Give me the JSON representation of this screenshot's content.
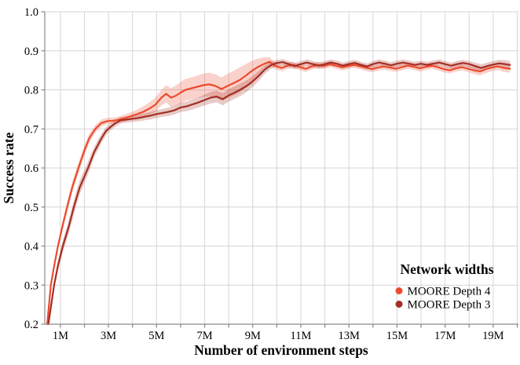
{
  "chart_data": {
    "type": "line",
    "title": "",
    "xlabel": "Number of environment steps",
    "ylabel": "Success rate",
    "xlim": [
      0.35,
      20.05
    ],
    "ylim": [
      0.2,
      1.0
    ],
    "x_unit": "millions",
    "grid": true,
    "x_grid_step": 1,
    "x_labeled_ticks": [
      {
        "value": 1,
        "label": "1M"
      },
      {
        "value": 3,
        "label": "3M"
      },
      {
        "value": 5,
        "label": "5M"
      },
      {
        "value": 7,
        "label": "7M"
      },
      {
        "value": 9,
        "label": "9M"
      },
      {
        "value": 11,
        "label": "11M"
      },
      {
        "value": 13,
        "label": "13M"
      },
      {
        "value": 15,
        "label": "15M"
      },
      {
        "value": 17,
        "label": "17M"
      },
      {
        "value": 19,
        "label": "19M"
      }
    ],
    "y_ticks": [
      {
        "value": 0.2,
        "label": "0.2"
      },
      {
        "value": 0.3,
        "label": "0.3"
      },
      {
        "value": 0.4,
        "label": "0.4"
      },
      {
        "value": 0.5,
        "label": "0.5"
      },
      {
        "value": 0.6,
        "label": "0.6"
      },
      {
        "value": 0.7,
        "label": "0.7"
      },
      {
        "value": 0.8,
        "label": "0.8"
      },
      {
        "value": 0.9,
        "label": "0.9"
      },
      {
        "value": 1.0,
        "label": "1.0"
      }
    ],
    "legend": {
      "title": "Network widths",
      "position": "lower right"
    },
    "colors": {
      "grid": "#d6d6d6",
      "spine": "#8a8a8a",
      "band_opacity": 0.25
    },
    "series": [
      {
        "name": "MOORE Depth 4",
        "color": "#ec4b2e",
        "points": [
          [
            0.45,
            0.2,
            0.004
          ],
          [
            0.6,
            0.3,
            0.006
          ],
          [
            0.75,
            0.352,
            0.008
          ],
          [
            0.9,
            0.4,
            0.01
          ],
          [
            1.1,
            0.455,
            0.012
          ],
          [
            1.3,
            0.505,
            0.013
          ],
          [
            1.5,
            0.552,
            0.014
          ],
          [
            1.75,
            0.6,
            0.014
          ],
          [
            2.0,
            0.645,
            0.013
          ],
          [
            2.2,
            0.676,
            0.012
          ],
          [
            2.45,
            0.7,
            0.01
          ],
          [
            2.7,
            0.715,
            0.009
          ],
          [
            2.95,
            0.72,
            0.008
          ],
          [
            3.2,
            0.721,
            0.008
          ],
          [
            3.45,
            0.724,
            0.008
          ],
          [
            3.7,
            0.728,
            0.009
          ],
          [
            3.95,
            0.733,
            0.01
          ],
          [
            4.2,
            0.738,
            0.012
          ],
          [
            4.45,
            0.744,
            0.014
          ],
          [
            4.7,
            0.752,
            0.016
          ],
          [
            4.95,
            0.762,
            0.018
          ],
          [
            5.2,
            0.78,
            0.02
          ],
          [
            5.4,
            0.79,
            0.022
          ],
          [
            5.6,
            0.78,
            0.024
          ],
          [
            5.8,
            0.785,
            0.026
          ],
          [
            6.0,
            0.793,
            0.027
          ],
          [
            6.2,
            0.8,
            0.028
          ],
          [
            6.45,
            0.804,
            0.028
          ],
          [
            6.7,
            0.808,
            0.029
          ],
          [
            6.95,
            0.812,
            0.03
          ],
          [
            7.2,
            0.814,
            0.03
          ],
          [
            7.45,
            0.81,
            0.03
          ],
          [
            7.7,
            0.802,
            0.03
          ],
          [
            7.95,
            0.81,
            0.031
          ],
          [
            8.2,
            0.817,
            0.032
          ],
          [
            8.45,
            0.825,
            0.032
          ],
          [
            8.7,
            0.836,
            0.03
          ],
          [
            8.95,
            0.848,
            0.026
          ],
          [
            9.2,
            0.858,
            0.022
          ],
          [
            9.45,
            0.866,
            0.017
          ],
          [
            9.7,
            0.872,
            0.012
          ],
          [
            9.95,
            0.861,
            0.009
          ],
          [
            10.2,
            0.856,
            0.008
          ],
          [
            10.45,
            0.862,
            0.008
          ],
          [
            10.7,
            0.864,
            0.008
          ],
          [
            10.95,
            0.858,
            0.008
          ],
          [
            11.2,
            0.854,
            0.008
          ],
          [
            11.45,
            0.86,
            0.008
          ],
          [
            11.7,
            0.864,
            0.008
          ],
          [
            11.95,
            0.861,
            0.008
          ],
          [
            12.2,
            0.866,
            0.008
          ],
          [
            12.45,
            0.862,
            0.008
          ],
          [
            12.7,
            0.858,
            0.008
          ],
          [
            12.95,
            0.861,
            0.008
          ],
          [
            13.2,
            0.864,
            0.008
          ],
          [
            13.45,
            0.861,
            0.008
          ],
          [
            13.7,
            0.857,
            0.008
          ],
          [
            13.95,
            0.853,
            0.008
          ],
          [
            14.2,
            0.857,
            0.008
          ],
          [
            14.45,
            0.86,
            0.008
          ],
          [
            14.7,
            0.857,
            0.008
          ],
          [
            14.95,
            0.854,
            0.008
          ],
          [
            15.2,
            0.858,
            0.008
          ],
          [
            15.45,
            0.862,
            0.008
          ],
          [
            15.7,
            0.859,
            0.008
          ],
          [
            15.95,
            0.855,
            0.008
          ],
          [
            16.2,
            0.859,
            0.008
          ],
          [
            16.45,
            0.862,
            0.008
          ],
          [
            16.7,
            0.858,
            0.008
          ],
          [
            16.95,
            0.853,
            0.008
          ],
          [
            17.2,
            0.85,
            0.008
          ],
          [
            17.45,
            0.855,
            0.008
          ],
          [
            17.7,
            0.858,
            0.008
          ],
          [
            17.95,
            0.854,
            0.008
          ],
          [
            18.2,
            0.85,
            0.009
          ],
          [
            18.45,
            0.847,
            0.01
          ],
          [
            18.7,
            0.853,
            0.01
          ],
          [
            18.95,
            0.857,
            0.009
          ],
          [
            19.2,
            0.86,
            0.009
          ],
          [
            19.45,
            0.856,
            0.01
          ],
          [
            19.7,
            0.854,
            0.01
          ]
        ]
      },
      {
        "name": "MOORE Depth 3",
        "color": "#a42e23",
        "points": [
          [
            0.5,
            0.2,
            0.004
          ],
          [
            0.74,
            0.3,
            0.008
          ],
          [
            0.9,
            0.35,
            0.012
          ],
          [
            1.1,
            0.4,
            0.015
          ],
          [
            1.35,
            0.45,
            0.017
          ],
          [
            1.56,
            0.5,
            0.018
          ],
          [
            1.8,
            0.55,
            0.018
          ],
          [
            2.15,
            0.6,
            0.016
          ],
          [
            2.4,
            0.64,
            0.014
          ],
          [
            2.7,
            0.675,
            0.012
          ],
          [
            2.9,
            0.695,
            0.01
          ],
          [
            3.1,
            0.706,
            0.009
          ],
          [
            3.3,
            0.715,
            0.008
          ],
          [
            3.5,
            0.722,
            0.008
          ],
          [
            3.75,
            0.724,
            0.008
          ],
          [
            4.0,
            0.726,
            0.008
          ],
          [
            4.25,
            0.728,
            0.009
          ],
          [
            4.5,
            0.731,
            0.009
          ],
          [
            4.75,
            0.734,
            0.01
          ],
          [
            5.0,
            0.738,
            0.01
          ],
          [
            5.25,
            0.741,
            0.01
          ],
          [
            5.5,
            0.744,
            0.011
          ],
          [
            5.75,
            0.748,
            0.011
          ],
          [
            6.0,
            0.755,
            0.012
          ],
          [
            6.25,
            0.758,
            0.012
          ],
          [
            6.5,
            0.763,
            0.013
          ],
          [
            6.75,
            0.768,
            0.013
          ],
          [
            7.0,
            0.774,
            0.014
          ],
          [
            7.25,
            0.78,
            0.015
          ],
          [
            7.5,
            0.783,
            0.015
          ],
          [
            7.75,
            0.776,
            0.016
          ],
          [
            8.0,
            0.786,
            0.016
          ],
          [
            8.25,
            0.793,
            0.016
          ],
          [
            8.5,
            0.801,
            0.016
          ],
          [
            8.75,
            0.81,
            0.015
          ],
          [
            9.0,
            0.822,
            0.014
          ],
          [
            9.25,
            0.836,
            0.013
          ],
          [
            9.5,
            0.852,
            0.011
          ],
          [
            9.75,
            0.863,
            0.009
          ],
          [
            10.0,
            0.869,
            0.008
          ],
          [
            10.25,
            0.871,
            0.008
          ],
          [
            10.5,
            0.866,
            0.008
          ],
          [
            10.75,
            0.861,
            0.008
          ],
          [
            11.0,
            0.866,
            0.008
          ],
          [
            11.25,
            0.87,
            0.008
          ],
          [
            11.5,
            0.866,
            0.008
          ],
          [
            11.75,
            0.862,
            0.008
          ],
          [
            12.0,
            0.866,
            0.008
          ],
          [
            12.25,
            0.87,
            0.008
          ],
          [
            12.5,
            0.867,
            0.008
          ],
          [
            12.75,
            0.862,
            0.008
          ],
          [
            13.0,
            0.866,
            0.008
          ],
          [
            13.25,
            0.869,
            0.008
          ],
          [
            13.5,
            0.864,
            0.008
          ],
          [
            13.75,
            0.86,
            0.008
          ],
          [
            14.0,
            0.866,
            0.008
          ],
          [
            14.25,
            0.87,
            0.008
          ],
          [
            14.5,
            0.867,
            0.008
          ],
          [
            14.75,
            0.863,
            0.008
          ],
          [
            15.0,
            0.867,
            0.008
          ],
          [
            15.25,
            0.87,
            0.008
          ],
          [
            15.5,
            0.867,
            0.008
          ],
          [
            15.75,
            0.864,
            0.008
          ],
          [
            16.0,
            0.867,
            0.008
          ],
          [
            16.25,
            0.864,
            0.008
          ],
          [
            16.5,
            0.867,
            0.008
          ],
          [
            16.75,
            0.87,
            0.008
          ],
          [
            17.0,
            0.866,
            0.008
          ],
          [
            17.25,
            0.862,
            0.008
          ],
          [
            17.5,
            0.866,
            0.008
          ],
          [
            17.75,
            0.869,
            0.008
          ],
          [
            18.0,
            0.866,
            0.008
          ],
          [
            18.25,
            0.861,
            0.009
          ],
          [
            18.5,
            0.856,
            0.01
          ],
          [
            18.75,
            0.861,
            0.009
          ],
          [
            19.0,
            0.865,
            0.009
          ],
          [
            19.25,
            0.868,
            0.009
          ],
          [
            19.5,
            0.866,
            0.01
          ],
          [
            19.7,
            0.864,
            0.01
          ]
        ]
      }
    ]
  }
}
